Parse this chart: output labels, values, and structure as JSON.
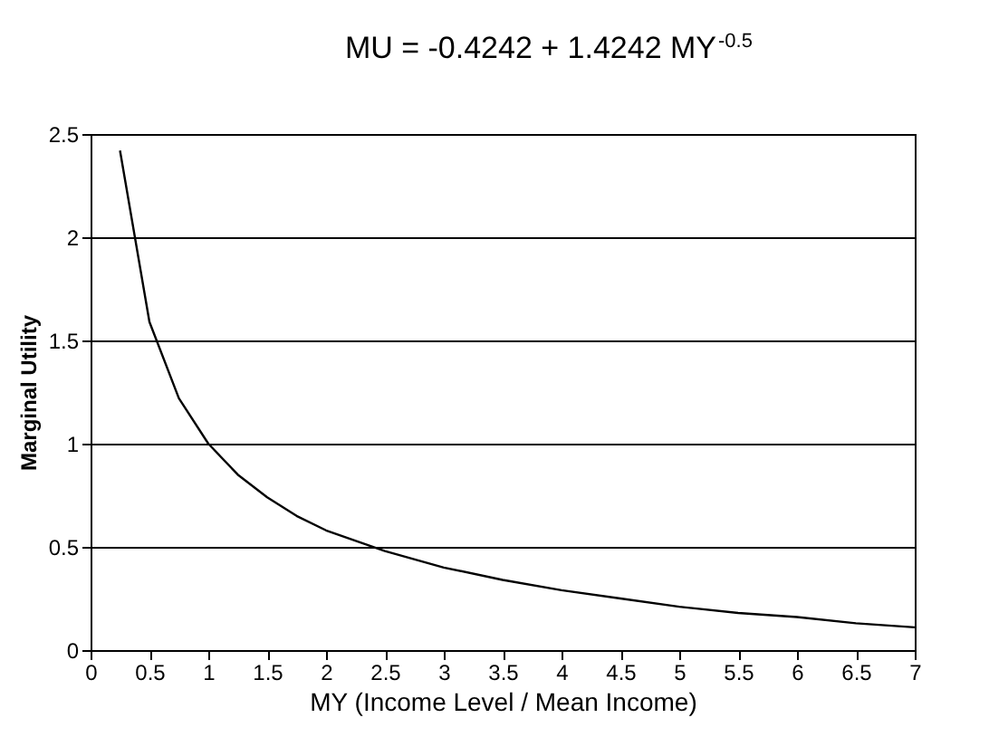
{
  "chart_data": {
    "type": "line",
    "title": "MU = -0.4242 + 1.4242 MY$^{-0.5}$",
    "xlabel": "MY (Income Level / Mean Income)",
    "ylabel": "Marginal Utility",
    "x": [
      0.25,
      0.5,
      0.75,
      1,
      1.25,
      1.5,
      1.75,
      2,
      2.5,
      3,
      3.5,
      4,
      4.5,
      5,
      5.5,
      6,
      6.5,
      7
    ],
    "series": [
      {
        "color": "#000000",
        "values": [
          2.42,
          1.59,
          1.22,
          1.0,
          0.85,
          0.74,
          0.65,
          0.58,
          0.48,
          0.4,
          0.34,
          0.29,
          0.25,
          0.21,
          0.18,
          0.16,
          0.13,
          0.11
        ]
      }
    ],
    "xlim": [
      0,
      7
    ],
    "xticks": [
      0,
      0.5,
      1,
      1.5,
      2,
      2.5,
      3,
      3.5,
      4,
      4.5,
      5,
      5.5,
      6,
      6.5,
      7
    ],
    "ylim": [
      0,
      2.5
    ],
    "yticks": [
      0,
      0.5,
      1,
      1.5,
      2,
      2.5
    ],
    "grid": "y",
    "marker": "none",
    "line_style": "solid"
  }
}
